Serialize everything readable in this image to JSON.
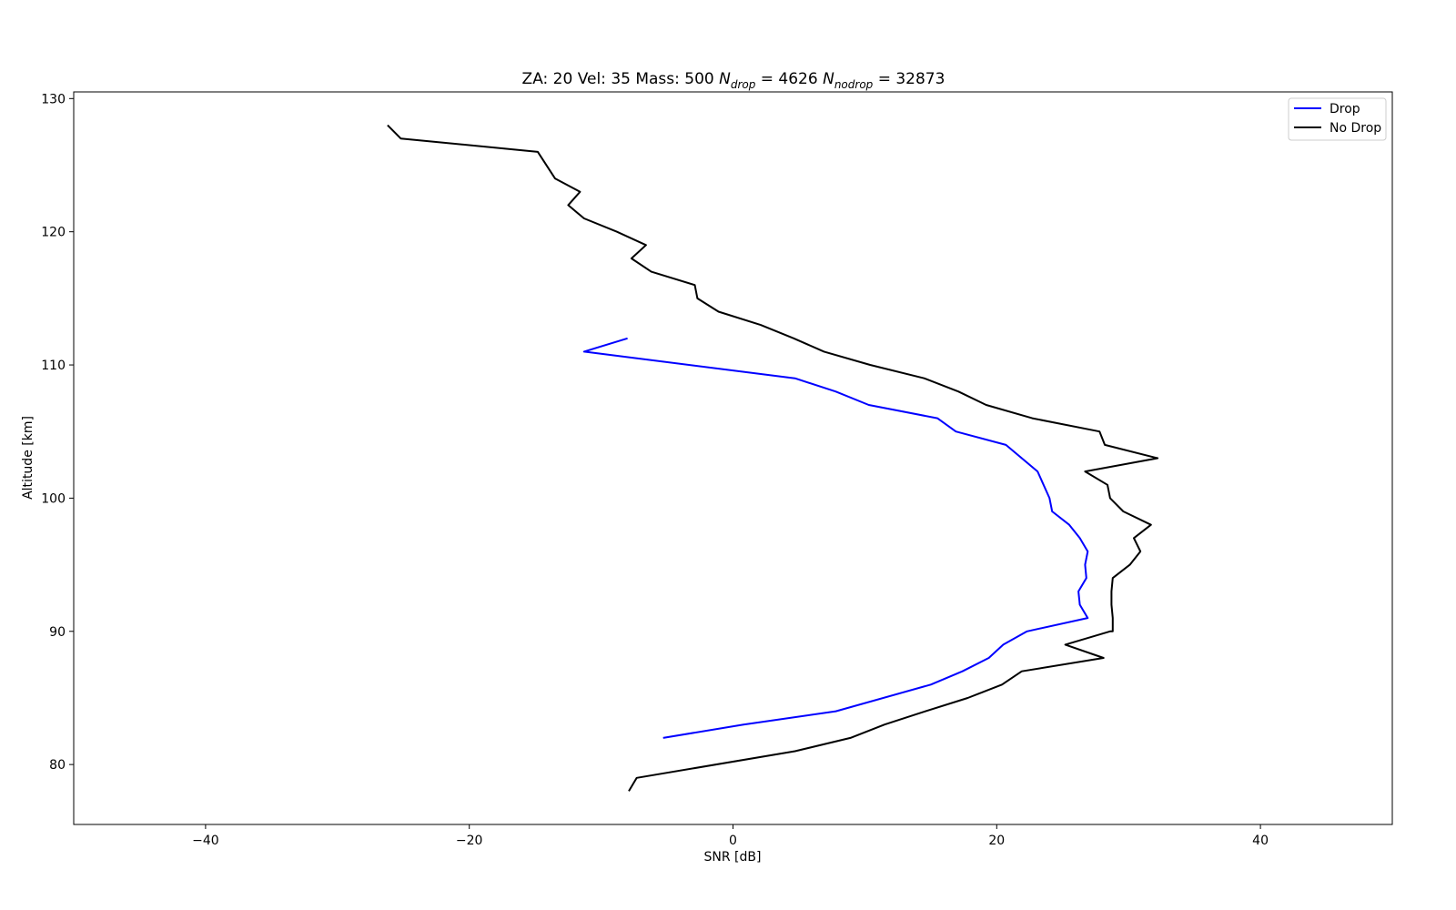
{
  "chart_data": {
    "type": "line",
    "title": {
      "prefix": "ZA: 20 Vel: 35 Mass: 500 ",
      "n_drop_symbol": "N",
      "n_drop_sub": "drop",
      "n_drop_value": " = 4626 ",
      "n_nodrop_symbol": "N",
      "n_nodrop_sub": "nodrop",
      "n_nodrop_value": " = 32873"
    },
    "xlabel": "SNR [dB]",
    "ylabel": "Altitude [km]",
    "xlim": [
      -50,
      50
    ],
    "ylim": [
      75.5,
      130.5
    ],
    "xticks": [
      -40,
      -20,
      0,
      20,
      40
    ],
    "yticks": [
      80,
      90,
      100,
      110,
      120,
      130
    ],
    "xtick_labels": [
      "−40",
      "−20",
      "0",
      "20",
      "40"
    ],
    "ytick_labels": [
      "80",
      "90",
      "100",
      "110",
      "120",
      "130"
    ],
    "grid": false,
    "legend": {
      "position": "top-right",
      "entries": [
        "Drop",
        "No Drop"
      ]
    },
    "series": [
      {
        "name": "Drop",
        "color": "#0000ff",
        "x": [
          -8.0,
          -11.3,
          4.7,
          7.8,
          10.3,
          15.5,
          16.9,
          20.7,
          23.1,
          24.0,
          24.2,
          25.5,
          26.3,
          26.9,
          26.7,
          26.8,
          26.2,
          26.3,
          26.9,
          22.3,
          20.5,
          19.4,
          17.4,
          15.0,
          7.8,
          0.8,
          -5.3
        ],
        "y": [
          112,
          111,
          109,
          108,
          107,
          106,
          105,
          104,
          102,
          100,
          99,
          98,
          97,
          96,
          95,
          94,
          93,
          92,
          91,
          90,
          89,
          88,
          87,
          86,
          84,
          83,
          82
        ]
      },
      {
        "name": "No Drop",
        "color": "#000000",
        "x": [
          -26.2,
          -25.2,
          -14.8,
          -13.5,
          -11.6,
          -12.5,
          -11.3,
          -8.8,
          -6.6,
          -7.7,
          -6.2,
          -2.9,
          -2.7,
          -1.1,
          2.1,
          4.6,
          6.9,
          10.4,
          14.5,
          17.1,
          19.2,
          22.7,
          27.8,
          28.2,
          32.2,
          26.7,
          28.4,
          28.6,
          29.6,
          31.7,
          30.4,
          30.9,
          30.1,
          28.8,
          28.7,
          28.7,
          28.8,
          28.8,
          28.6,
          25.2,
          28.1,
          21.9,
          20.4,
          17.8,
          14.6,
          11.5,
          8.9,
          4.7,
          -7.3,
          -7.9
        ],
        "y": [
          128,
          127,
          126,
          124,
          123,
          122,
          121,
          120,
          119,
          118,
          117,
          116,
          115,
          114,
          113,
          112,
          111,
          110,
          109,
          108,
          107,
          106,
          105,
          104,
          103,
          102,
          101,
          100,
          99,
          98,
          97,
          96,
          95,
          94,
          93,
          92,
          91,
          90,
          90,
          89,
          88,
          87,
          86,
          85,
          84,
          83,
          82,
          81,
          79,
          78
        ]
      }
    ]
  }
}
